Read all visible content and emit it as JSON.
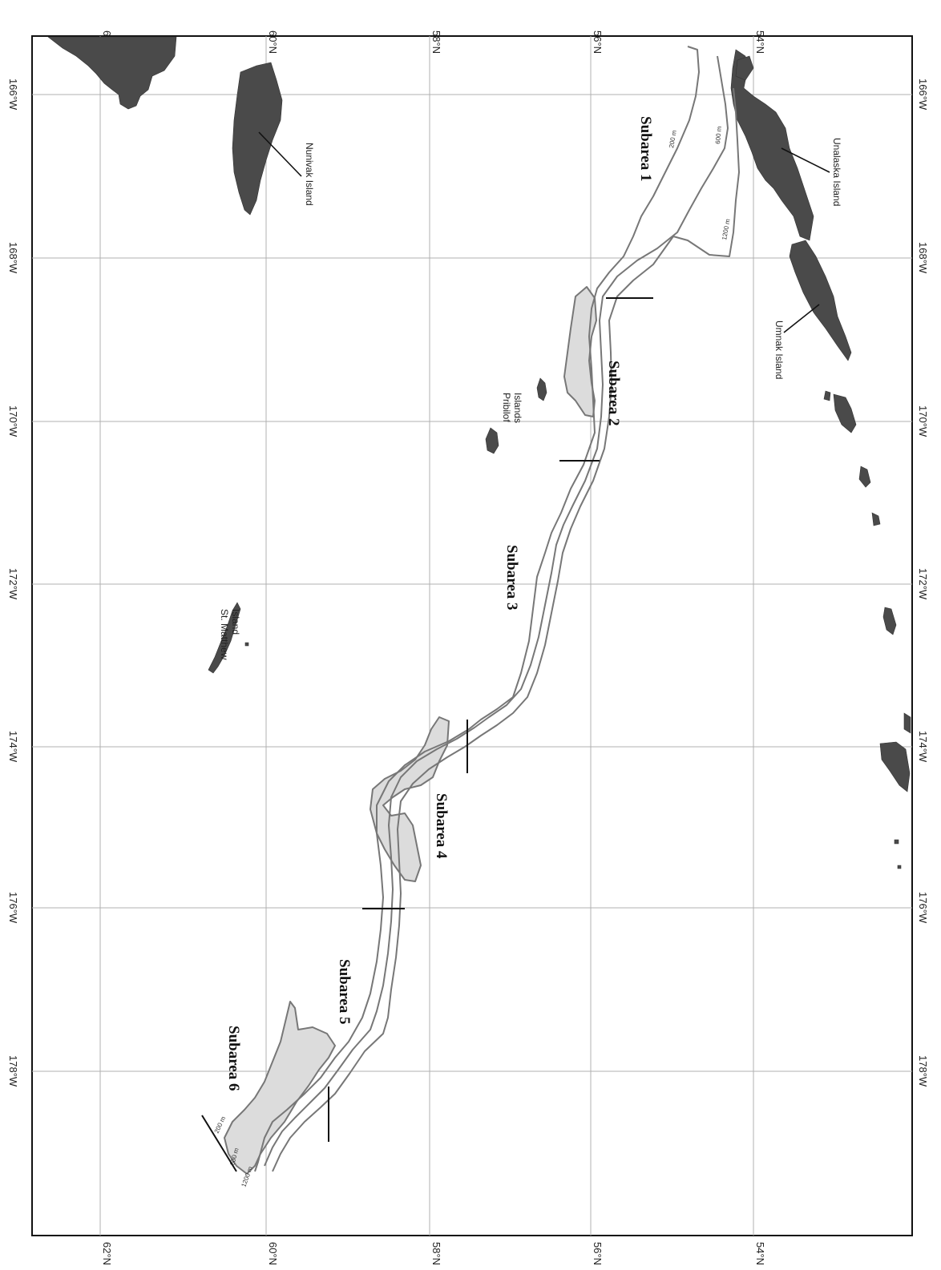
{
  "map": {
    "lat_labels": [
      "62°N",
      "60°N",
      "58°N",
      "56°N",
      "54°N"
    ],
    "lon_labels": [
      "166°W",
      "168°W",
      "170°W",
      "172°W",
      "174°W",
      "176°W",
      "178°W"
    ],
    "islands": [
      {
        "name": "Nunivak Island"
      },
      {
        "name": "Unalaska Island"
      },
      {
        "name": "Umnak Island"
      },
      {
        "name": "Pribilof Islands"
      },
      {
        "name": "St. Matthew Island"
      }
    ],
    "subareas": [
      "Subarea 1",
      "Subarea 2",
      "Subarea 3",
      "Subarea 4",
      "Subarea 5",
      "Subarea 6"
    ],
    "depth_contours": [
      "200 m",
      "600 m",
      "1200 m"
    ],
    "colors": {
      "land": "#4a4a4a",
      "shelf": "#dcdcdc",
      "contour": "#777777",
      "grid": "#b0b0b0"
    }
  }
}
